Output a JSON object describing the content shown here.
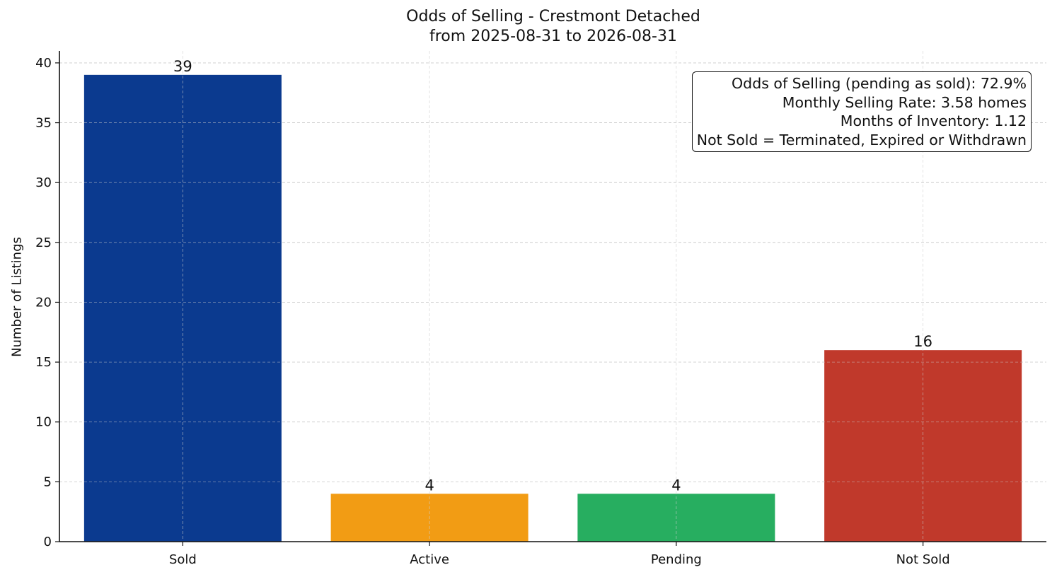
{
  "chart_data": {
    "type": "bar",
    "title": "Odds of Selling - Crestmont Detached",
    "subtitle": "from 2025-08-31 to 2026-08-31",
    "xlabel": "",
    "ylabel": "Number of Listings",
    "ylim": [
      0,
      41
    ],
    "yticks": [
      0,
      5,
      10,
      15,
      20,
      25,
      30,
      35,
      40
    ],
    "grid": true,
    "categories": [
      "Sold",
      "Active",
      "Pending",
      "Not Sold"
    ],
    "values": [
      39,
      4,
      4,
      16
    ],
    "colors": [
      "#0b3a8f",
      "#f29c14",
      "#27ae60",
      "#c0392b"
    ],
    "data_labels": [
      "39",
      "4",
      "4",
      "16"
    ],
    "annotation_box": {
      "placement": "top-right",
      "lines": [
        "Odds of Selling (pending as sold): 72.9%",
        "Monthly Selling Rate: 3.58 homes",
        "Months of Inventory: 1.12",
        "Not Sold = Terminated, Expired or Withdrawn"
      ]
    }
  }
}
